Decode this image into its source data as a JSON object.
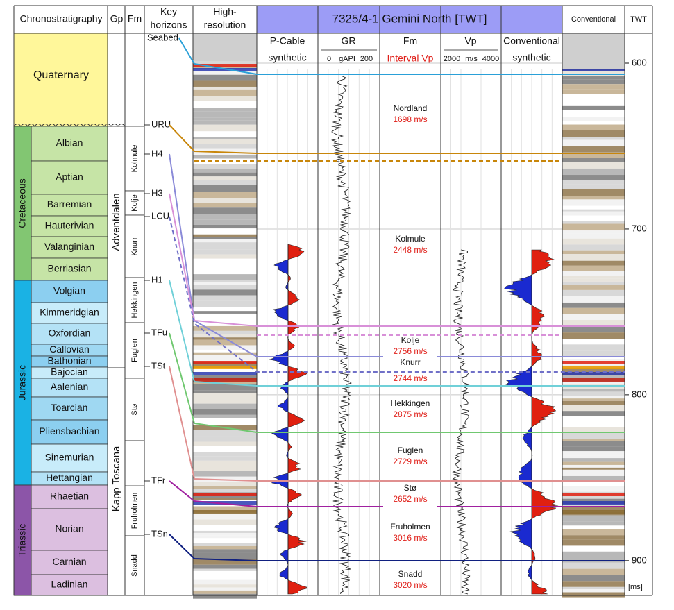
{
  "header": {
    "chrono": "Chronostratigraphy",
    "gp": "Gp",
    "fm": "Fm",
    "key_horizons": [
      "Key",
      "horizons"
    ],
    "high_res": [
      "High-",
      "resolution"
    ],
    "main": "7325/4-1 Gemini North [TWT]",
    "conventional": "Conventional",
    "twt": "TWT"
  },
  "subheader": {
    "pcable": [
      "P-Cable",
      "synthetic"
    ],
    "gr": {
      "title": "GR",
      "scale": [
        "0",
        "gAPI",
        "200"
      ]
    },
    "fm": {
      "title": "Fm",
      "sub": "Interval Vp"
    },
    "vp": {
      "title": "Vp",
      "scale": [
        "2000",
        "m/s",
        "4000"
      ]
    },
    "conv": [
      "Conventional",
      "synthetic"
    ]
  },
  "periods": [
    "Cretaceous",
    "Jurassic",
    "Triassic"
  ],
  "stages": [
    "Quaternary",
    "Albian",
    "Aptian",
    "Barremian",
    "Hauterivian",
    "Valanginian",
    "Berriasian",
    "Volgian",
    "Kimmeridgian",
    "Oxfordian",
    "Callovian",
    "Bathonian",
    "Bajocian",
    "Aalenian",
    "Toarcian",
    "Pliensbachian",
    "Sinemurian",
    "Hettangian",
    "Rhaetian",
    "Norian",
    "Carnian",
    "Ladinian"
  ],
  "groups": [
    "Adventdalen",
    "Kapp Toscana"
  ],
  "formations": [
    "Kolmule",
    "Kolje",
    "Knurr",
    "Hekkingen",
    "Fuglen",
    "Stø",
    "Fruholmen",
    "Snadd"
  ],
  "horizons": [
    "Seabed",
    "URU",
    "H4",
    "H3",
    "LCU",
    "H1",
    "TFu",
    "TSt",
    "TFr",
    "TSn"
  ],
  "intervals": [
    {
      "name": "Nordland",
      "vp": "1698 m/s"
    },
    {
      "name": "Kolmule",
      "vp": "2448 m/s"
    },
    {
      "name": "Kolje",
      "vp": "2756 m/s"
    },
    {
      "name": "Knurr",
      "vp": "2744 m/s"
    },
    {
      "name": "Hekkingen",
      "vp": "2875 m/s"
    },
    {
      "name": "Fuglen",
      "vp": "2729 m/s"
    },
    {
      "name": "Stø",
      "vp": "2652 m/s"
    },
    {
      "name": "Fruholmen",
      "vp": "3016 m/s"
    },
    {
      "name": "Snadd",
      "vp": "3020 m/s"
    }
  ],
  "twt_axis": {
    "lim": [
      582,
      921
    ],
    "ticks": [
      600,
      700,
      800,
      900
    ],
    "unit": "[ms]"
  }
}
